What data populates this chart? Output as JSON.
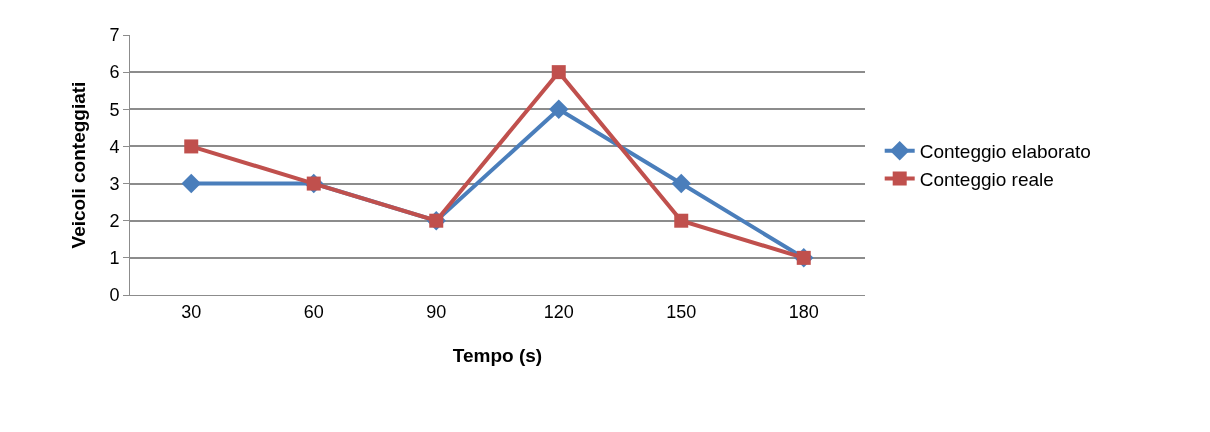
{
  "chart_data": {
    "type": "line",
    "xlabel": "Tempo (s)",
    "ylabel": "Veicoli conteggiati",
    "categories": [
      "30",
      "60",
      "90",
      "120",
      "150",
      "180"
    ],
    "series": [
      {
        "name": "Conteggio elaborato",
        "color": "#4a7ebb",
        "marker": "diamond",
        "values": [
          3,
          3,
          2,
          5,
          3,
          1
        ]
      },
      {
        "name": "Conteggio reale",
        "color": "#c0504d",
        "marker": "square",
        "values": [
          4,
          3,
          2,
          6,
          2,
          1
        ]
      }
    ],
    "ylim": [
      0,
      7
    ],
    "yticks": [
      0,
      1,
      2,
      3,
      4,
      5,
      6,
      7
    ],
    "grid": "y",
    "legend": "right"
  }
}
